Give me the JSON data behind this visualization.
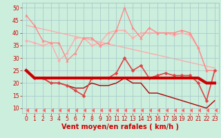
{
  "background_color": "#cceedd",
  "grid_color": "#aacccc",
  "xlabel": "Vent moyen/en rafales ( km/h )",
  "xlim": [
    -0.5,
    23.5
  ],
  "ylim": [
    8,
    52
  ],
  "yticks": [
    10,
    15,
    20,
    25,
    30,
    35,
    40,
    45,
    50
  ],
  "xticks": [
    0,
    1,
    2,
    3,
    4,
    5,
    6,
    7,
    8,
    9,
    10,
    11,
    12,
    13,
    14,
    15,
    16,
    17,
    18,
    19,
    20,
    21,
    22,
    23
  ],
  "series": [
    {
      "name": "rafales_max_scatter",
      "x": [
        0,
        1,
        2,
        3,
        4,
        5,
        6,
        7,
        8,
        9,
        10,
        11,
        12,
        13,
        14,
        15,
        16,
        17,
        18,
        19,
        20,
        21,
        22,
        23
      ],
      "y": [
        47,
        43,
        37,
        36,
        36,
        29,
        32,
        38,
        38,
        35,
        36,
        41,
        50,
        42,
        38,
        42,
        40,
        40,
        40,
        41,
        40,
        34,
        25,
        25
      ],
      "color": "#ff8888",
      "lw": 1.0,
      "marker": "^",
      "ms": 2.5,
      "zorder": 3
    },
    {
      "name": "rafales_trend_line",
      "x": [
        0,
        23
      ],
      "y": [
        43,
        26
      ],
      "color": "#ffaaaa",
      "lw": 1.0,
      "marker": null,
      "ms": 0,
      "zorder": 1
    },
    {
      "name": "rafales_upper",
      "x": [
        0,
        1,
        2,
        3,
        4,
        5,
        6,
        7,
        8,
        9,
        10,
        11,
        12,
        13,
        14,
        15,
        16,
        17,
        18,
        19,
        20,
        21,
        22,
        23
      ],
      "y": [
        37,
        36,
        35,
        36,
        29,
        32,
        38,
        38,
        35,
        36,
        40,
        41,
        41,
        38,
        40,
        40,
        40,
        40,
        39,
        40,
        39,
        34,
        25,
        25
      ],
      "color": "#ffaaaa",
      "lw": 1.0,
      "marker": "D",
      "ms": 2.0,
      "zorder": 2
    },
    {
      "name": "vent_markers",
      "x": [
        0,
        1,
        2,
        3,
        4,
        5,
        6,
        7,
        8,
        9,
        10,
        11,
        12,
        13,
        14,
        15,
        16,
        17,
        18,
        19,
        20,
        21,
        22,
        23
      ],
      "y": [
        25,
        22,
        22,
        20,
        20,
        19,
        17,
        15,
        22,
        22,
        22,
        24,
        30,
        25,
        27,
        22,
        23,
        24,
        23,
        23,
        23,
        20,
        13,
        25
      ],
      "color": "#dd4444",
      "lw": 1.2,
      "marker": "D",
      "ms": 2.5,
      "zorder": 5
    },
    {
      "name": "vent_moyen_thick",
      "x": [
        0,
        1,
        2,
        3,
        4,
        5,
        6,
        7,
        8,
        9,
        10,
        11,
        12,
        13,
        14,
        15,
        16,
        17,
        18,
        19,
        20,
        21,
        22,
        23
      ],
      "y": [
        25,
        22,
        22,
        22,
        22,
        22,
        22,
        22,
        22,
        22,
        22,
        22,
        22,
        22,
        22,
        22,
        22,
        22,
        22,
        22,
        22,
        22,
        20,
        20
      ],
      "color": "#cc0000",
      "lw": 3.0,
      "marker": null,
      "ms": 0,
      "zorder": 6
    },
    {
      "name": "vent_declining",
      "x": [
        0,
        1,
        2,
        3,
        4,
        5,
        6,
        7,
        8,
        9,
        10,
        11,
        12,
        13,
        14,
        15,
        16,
        17,
        18,
        19,
        20,
        21,
        22,
        23
      ],
      "y": [
        25,
        22,
        22,
        20,
        20,
        19,
        18,
        18,
        20,
        19,
        19,
        20,
        22,
        20,
        20,
        16,
        16,
        15,
        14,
        13,
        12,
        11,
        10,
        13
      ],
      "color": "#aa0000",
      "lw": 1.0,
      "marker": null,
      "ms": 0,
      "zorder": 4
    },
    {
      "name": "arrows_row",
      "x": [
        0,
        1,
        2,
        3,
        4,
        5,
        6,
        7,
        8,
        9,
        10,
        11,
        12,
        13,
        14,
        15,
        16,
        17,
        18,
        19,
        20,
        21,
        22,
        23
      ],
      "y": [
        9,
        9,
        9,
        9,
        9,
        9,
        9,
        9,
        9,
        9,
        9,
        9,
        9,
        9,
        9,
        9,
        9,
        9,
        9,
        9,
        9,
        9,
        9,
        9
      ],
      "color": "#ff6666",
      "lw": 0,
      "marker": 4,
      "ms": 4,
      "zorder": 7
    }
  ],
  "tick_fontsize": 5.5,
  "xlabel_fontsize": 7.0,
  "xlabel_color": "#cc0000",
  "tick_color": "#cc0000"
}
